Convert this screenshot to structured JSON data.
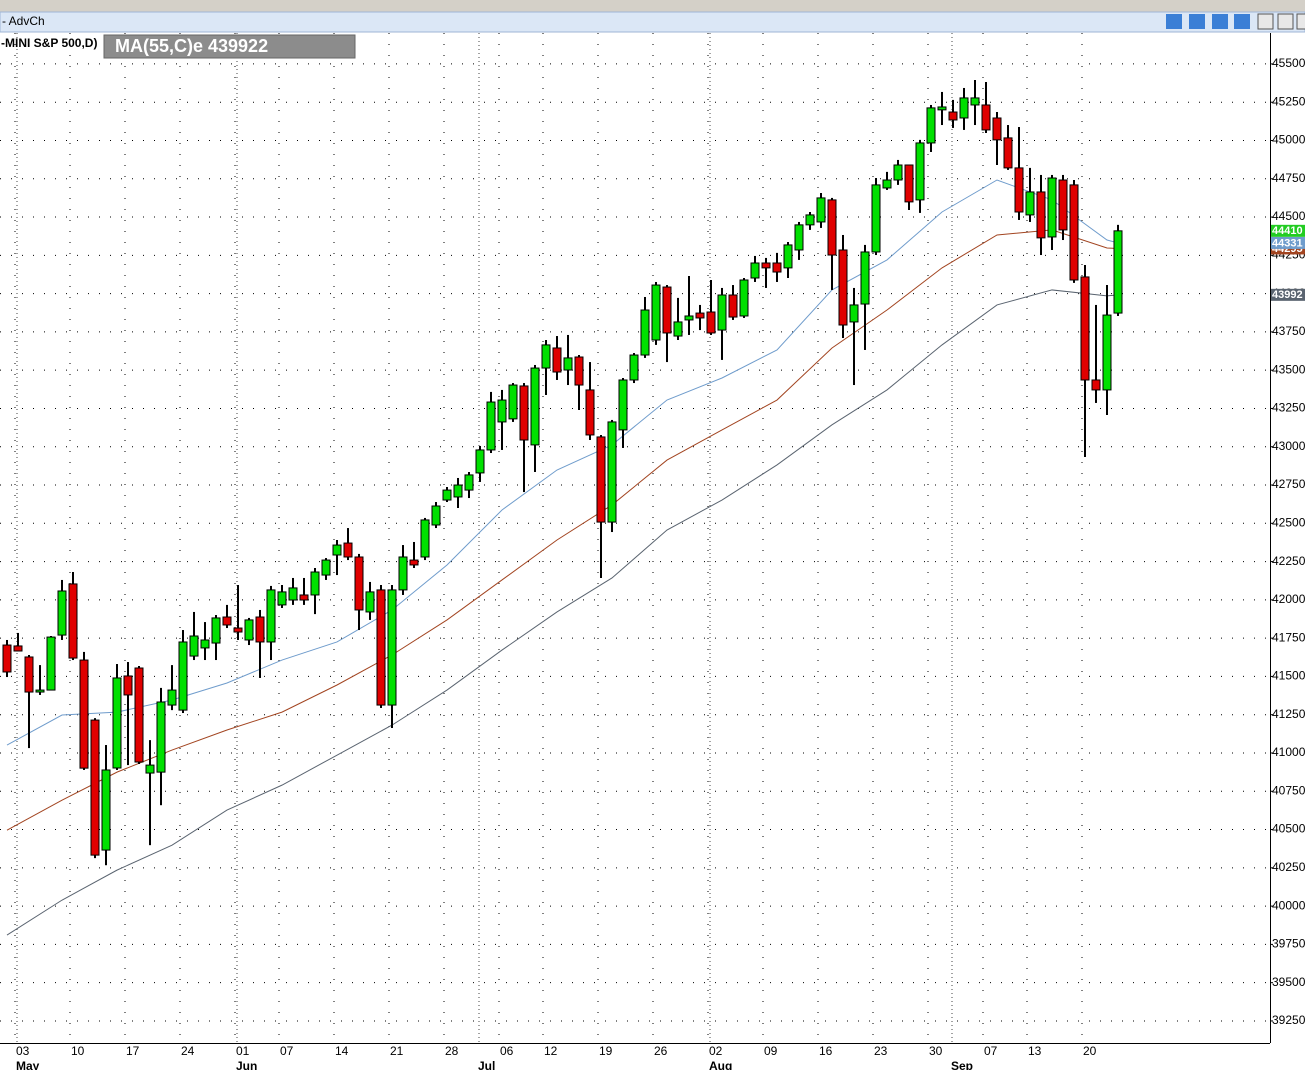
{
  "window": {
    "title": "- AdvCh"
  },
  "chart_data": {
    "type": "candlestick",
    "title": "-MINI S&P 500,D)",
    "indicator_label": "MA(55,C)e 439922",
    "categories": [
      null,
      "03",
      null,
      null,
      null,
      null,
      "10",
      null,
      null,
      null,
      null,
      "17",
      null,
      null,
      null,
      null,
      "24",
      null,
      null,
      null,
      null,
      "01",
      null,
      null,
      null,
      "07",
      null,
      null,
      null,
      null,
      "14",
      null,
      null,
      null,
      null,
      "21",
      null,
      null,
      null,
      null,
      "28",
      null,
      null,
      null,
      null,
      "06",
      null,
      null,
      null,
      "12",
      null,
      null,
      null,
      null,
      "19",
      null,
      null,
      null,
      null,
      "26",
      null,
      null,
      null,
      null,
      "02",
      null,
      null,
      null,
      null,
      "09",
      null,
      null,
      null,
      null,
      "16",
      null,
      null,
      null,
      null,
      "23",
      null,
      null,
      null,
      null,
      "30",
      null,
      null,
      null,
      null,
      "07",
      null,
      null,
      null,
      "13",
      null,
      null,
      null,
      null,
      "20",
      null,
      null,
      null
    ],
    "month_categories": [
      null,
      "May",
      null,
      null,
      null,
      null,
      null,
      null,
      null,
      null,
      null,
      null,
      null,
      null,
      null,
      null,
      null,
      null,
      null,
      null,
      null,
      "Jun",
      null,
      null,
      null,
      null,
      null,
      null,
      null,
      null,
      null,
      null,
      null,
      null,
      null,
      null,
      null,
      null,
      null,
      null,
      null,
      null,
      null,
      "Jul",
      null,
      null,
      null,
      null,
      null,
      null,
      null,
      null,
      null,
      null,
      null,
      null,
      null,
      null,
      null,
      null,
      null,
      null,
      null,
      null,
      "Aug",
      null,
      null,
      null,
      null,
      null,
      null,
      null,
      null,
      null,
      null,
      null,
      null,
      null,
      null,
      null,
      null,
      null,
      null,
      null,
      null,
      null,
      "Sep",
      null,
      null,
      null,
      null,
      null,
      null,
      null,
      null,
      null,
      null,
      null,
      null,
      null,
      null,
      null
    ],
    "open": [
      41705,
      41699,
      41627,
      41398,
      41411,
      41770,
      42104,
      41607,
      41215,
      40366,
      40902,
      41503,
      41555,
      40869,
      40875,
      41313,
      41280,
      41633,
      41686,
      41718,
      41888,
      41816,
      41738,
      41888,
      41725,
      41967,
      41999,
      42032,
      42032,
      42162,
      42293,
      42371,
      42280,
      41921,
      42065,
      41313,
      42065,
      42260,
      42280,
      42489,
      42652,
      42672,
      42717,
      42829,
      42979,
      43162,
      43182,
      43397,
      43012,
      43514,
      43645,
      43501,
      43586,
      43371,
      43064,
      42508,
      43110,
      43436,
      43599,
      43697,
      44043,
      43723,
      43828,
      43873,
      43880,
      43762,
      43991,
      43854,
      44102,
      44200,
      44200,
      44168,
      44285,
      44449,
      44468,
      44612,
      44285,
      43815,
      43932,
      44272,
      44690,
      44742,
      44840,
      44612,
      44984,
      45200,
      45186,
      45147,
      45232,
      45232,
      45147,
      45017,
      44821,
      44514,
      44664,
      44370,
      44742,
      44710,
      44109,
      43436,
      43371,
      43873
    ],
    "high": [
      41738,
      41784,
      41640,
      41574,
      41764,
      42130,
      42182,
      41660,
      41228,
      41052,
      41581,
      41594,
      41568,
      41084,
      41425,
      41574,
      41803,
      41921,
      41855,
      41901,
      41967,
      42097,
      41882,
      41934,
      42091,
      42097,
      42143,
      42143,
      42208,
      42273,
      42391,
      42469,
      42300,
      42117,
      42097,
      42097,
      42358,
      42378,
      42535,
      42639,
      42737,
      42796,
      42835,
      43005,
      43358,
      43371,
      43416,
      43416,
      43534,
      43697,
      43723,
      43730,
      43599,
      43553,
      43077,
      43175,
      43449,
      43612,
      43978,
      44076,
      44056,
      43972,
      44115,
      43926,
      44089,
      44037,
      44056,
      44102,
      44246,
      44233,
      44266,
      44337,
      44468,
      44533,
      44657,
      44625,
      44383,
      44037,
      44318,
      44755,
      44795,
      44873,
      44840,
      45004,
      45232,
      45317,
      45265,
      45343,
      45395,
      45382,
      45186,
      45101,
      45088,
      44821,
      44775,
      44775,
      44775,
      44742,
      44187,
      43926,
      44056,
      44449
    ],
    "low": [
      41496,
      41666,
      41032,
      41379,
      41411,
      41738,
      41607,
      40889,
      40313,
      40267,
      40889,
      40921,
      40928,
      40398,
      40659,
      41280,
      41261,
      41607,
      41607,
      41607,
      41816,
      41738,
      41705,
      41490,
      41607,
      41947,
      41967,
      41967,
      41907,
      42130,
      42162,
      42260,
      41803,
      41869,
      41294,
      41163,
      42032,
      42208,
      42260,
      42469,
      42639,
      42600,
      42665,
      42770,
      42959,
      42979,
      43162,
      42704,
      42835,
      43338,
      43436,
      43403,
      43240,
      43044,
      42143,
      42443,
      42992,
      43416,
      43580,
      43665,
      43553,
      43697,
      43730,
      43762,
      43730,
      43567,
      43828,
      43841,
      44076,
      44037,
      44076,
      44102,
      44220,
      44416,
      44429,
      44024,
      43710,
      43403,
      43632,
      44252,
      44677,
      44710,
      44546,
      44527,
      44925,
      45101,
      45082,
      45069,
      45101,
      45049,
      44840,
      44808,
      44481,
      44468,
      44252,
      44285,
      44350,
      44070,
      42933,
      43286,
      43207,
      43854
    ],
    "close": [
      41529,
      41666,
      41398,
      41411,
      41757,
      42058,
      41620,
      40901,
      40333,
      40889,
      41490,
      41379,
      40941,
      40921,
      41333,
      41411,
      41725,
      41764,
      41738,
      41882,
      41836,
      41790,
      41869,
      41725,
      42065,
      42052,
      42078,
      41999,
      42182,
      42260,
      42358,
      42280,
      41934,
      42052,
      41313,
      42065,
      42280,
      42228,
      42522,
      42613,
      42717,
      42750,
      42816,
      42979,
      43292,
      43305,
      43403,
      43044,
      43514,
      43665,
      43488,
      43580,
      43403,
      43077,
      42508,
      43162,
      43436,
      43599,
      43893,
      44056,
      43743,
      43815,
      43854,
      43841,
      43743,
      43991,
      43847,
      44089,
      44200,
      44168,
      44141,
      44318,
      44449,
      44514,
      44625,
      44252,
      43795,
      43926,
      44272,
      44710,
      44742,
      44840,
      44599,
      44984,
      45213,
      45219,
      45134,
      45278,
      45278,
      45069,
      45004,
      44821,
      44533,
      44664,
      44364,
      44755,
      44416,
      44089,
      43436,
      43371,
      43860,
      44410
    ],
    "up_color": "#00e000",
    "down_color": "#e00000",
    "last_color": "#22cc22",
    "lines": [
      {
        "color": "#6f9ccc",
        "x": [
          0,
          5,
          10,
          15,
          20,
          25,
          30,
          35,
          40,
          45,
          50,
          55,
          60,
          65,
          70,
          75,
          80,
          85,
          90,
          95,
          100,
          101
        ],
        "values": [
          41052,
          41248,
          41267,
          41346,
          41457,
          41607,
          41725,
          41934,
          42228,
          42587,
          42848,
          43012,
          43305,
          43449,
          43632,
          44024,
          44220,
          44533,
          44742,
          44612,
          44350,
          44331
        ]
      },
      {
        "color": "#a24420",
        "x": [
          0,
          5,
          10,
          15,
          20,
          25,
          30,
          35,
          40,
          45,
          50,
          55,
          60,
          65,
          70,
          75,
          80,
          85,
          90,
          95,
          100,
          101
        ],
        "values": [
          40496,
          40692,
          40875,
          41019,
          41150,
          41267,
          41444,
          41640,
          41869,
          42130,
          42391,
          42620,
          42913,
          43110,
          43305,
          43645,
          43893,
          44168,
          44383,
          44416,
          44298,
          44295
        ]
      },
      {
        "color": "#5a6470",
        "x": [
          0,
          5,
          10,
          15,
          20,
          25,
          30,
          35,
          40,
          45,
          50,
          55,
          60,
          65,
          70,
          75,
          80,
          85,
          90,
          95,
          100,
          101
        ],
        "values": [
          39811,
          40039,
          40235,
          40398,
          40627,
          40790,
          40986,
          41182,
          41411,
          41672,
          41921,
          42143,
          42456,
          42652,
          42881,
          43143,
          43371,
          43665,
          43926,
          44024,
          43985,
          43992
        ]
      }
    ],
    "ylim": [
      39106,
      45702
    ],
    "yticks": [
      45500,
      45250,
      45000,
      44750,
      44500,
      44250,
      44000,
      43750,
      43500,
      43250,
      43000,
      42750,
      42500,
      42250,
      42000,
      41750,
      41500,
      41250,
      41000,
      40750,
      40500,
      40250,
      40000,
      39750,
      39500,
      39250
    ],
    "grid": true
  }
}
